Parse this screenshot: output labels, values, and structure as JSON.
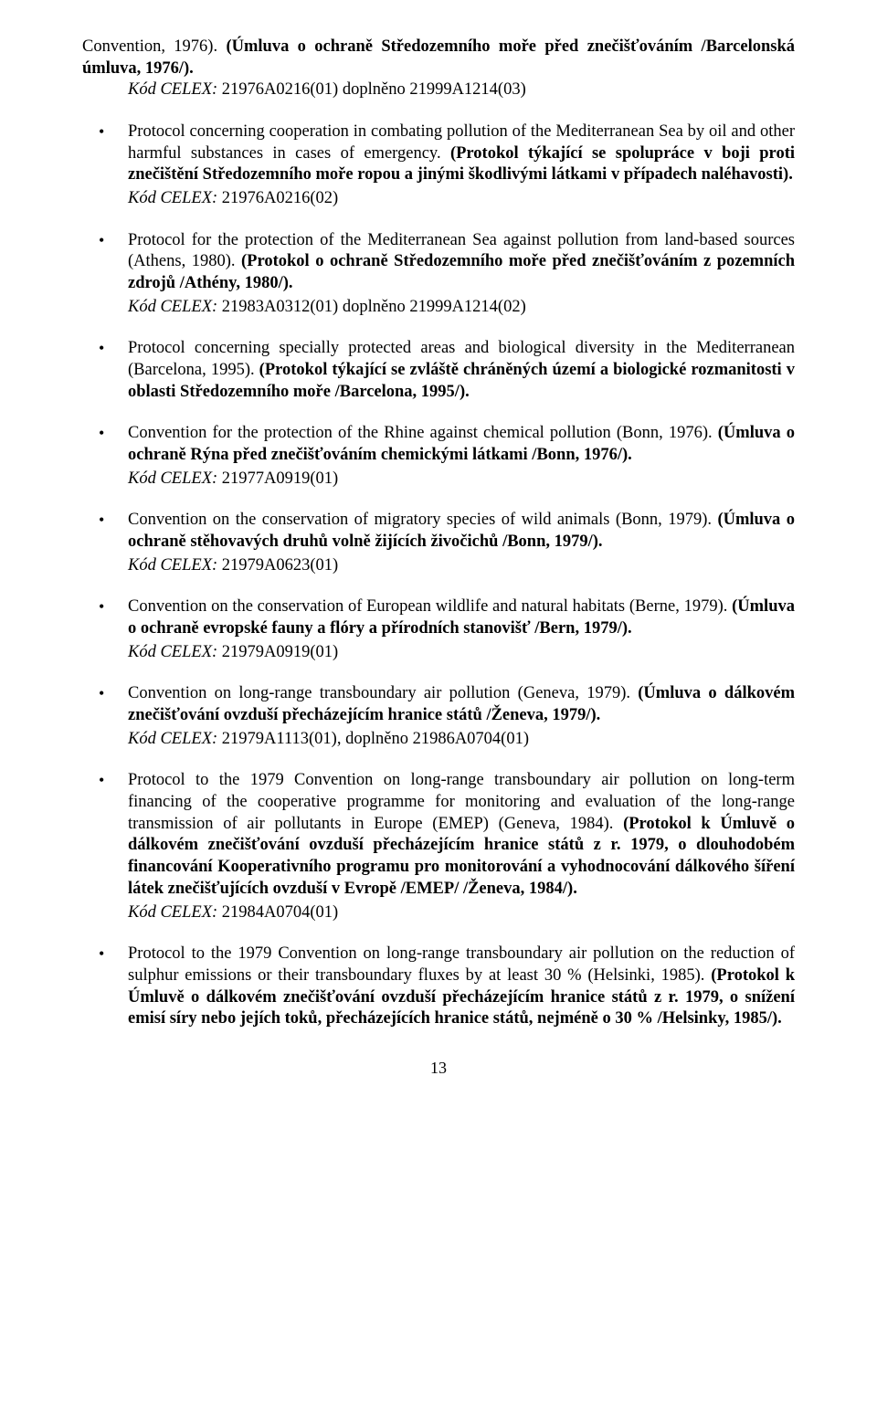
{
  "continuation": {
    "text_en": "Convention, 1976).",
    "text_cs_bold": " (Úmluva o ochraně Středozemního moře před znečišťováním /Barcelonská úmluva, 1976/).",
    "celex_label": "Kód CELEX:",
    "celex_code": " 21976A0216(01) doplněno 21999A1214(03)"
  },
  "items": [
    {
      "text_en": "Protocol concerning cooperation in combating pollution of the Mediterranean Sea by oil and other harmful substances in cases of emergency.",
      "text_cs_bold": " (Protokol týkající se spolupráce v boji proti znečištění Středozemního moře ropou a jinými škodlivými látkami v případech naléhavosti).",
      "celex_label": "Kód CELEX:",
      "celex_code": " 21976A0216(02)"
    },
    {
      "text_en": "Protocol for the protection of the Mediterranean Sea against pollution from land-based sources (Athens, 1980).",
      "text_cs_bold": " (Protokol o ochraně Středozemního moře před znečišťováním z pozemních zdrojů /Athény, 1980/).",
      "celex_label": "Kód CELEX:",
      "celex_code": " 21983A0312(01) doplněno 21999A1214(02)"
    },
    {
      "text_en": "Protocol concerning specially protected areas and biological diversity in the Mediterranean (Barcelona, 1995).",
      "text_cs_bold": " (Protokol týkající se zvláště chráněných území a biologické rozmanitosti v oblasti Středozemního moře /Barcelona, 1995/).",
      "celex_label": "",
      "celex_code": ""
    },
    {
      "text_en": "Convention for the protection of the Rhine against chemical pollution (Bonn, 1976).",
      "text_cs_bold": " (Úmluva o ochraně Rýna před znečišťováním chemickými látkami /Bonn, 1976/).",
      "celex_label": "Kód CELEX:",
      "celex_code": " 21977A0919(01)"
    },
    {
      "text_en": "Convention on the conservation of migratory species of wild animals (Bonn, 1979).",
      "text_cs_bold": " (Úmluva o ochraně stěhovavých druhů volně žijících živočichů /Bonn, 1979/).",
      "celex_label": "Kód CELEX:",
      "celex_code": " 21979A0623(01)"
    },
    {
      "text_en": "Convention on the conservation of European wildlife and natural habitats (Berne, 1979).",
      "text_cs_bold": " (Úmluva o ochraně evropské fauny a flóry a přírodních stanovišť /Bern, 1979/).",
      "celex_label": "Kód CELEX:",
      "celex_code": " 21979A0919(01)"
    },
    {
      "text_en": "Convention on long-range transboundary air pollution (Geneva, 1979).",
      "text_cs_bold": " (Úmluva o dálkovém znečišťování ovzduší přecházejícím hranice států /Ženeva, 1979/).",
      "celex_label": "Kód CELEX:",
      "celex_code": " 21979A1113(01), doplněno 21986A0704(01)"
    },
    {
      "text_en": "Protocol to the 1979 Convention on long-range transboundary air pollution on long-term financing of the cooperative programme for monitoring and evaluation of the long-range transmission of air pollutants in Europe (EMEP) (Geneva, 1984).",
      "text_cs_bold": " (Protokol k Úmluvě o dálkovém znečišťování ovzduší přecházejícím hranice států z r. 1979, o dlouhodobém financování Kooperativního programu pro monitorování a vyhodnocování dálkového šíření látek znečišťujících ovzduší v Evropě /EMEP/ /Ženeva, 1984/).",
      "celex_label": "Kód CELEX:",
      "celex_code": " 21984A0704(01)"
    },
    {
      "text_en": "Protocol to the 1979 Convention on long-range transboundary air pollution on the reduction of sulphur emissions or their transboundary fluxes by at least 30 % (Helsinki, 1985).",
      "text_cs_bold": " (Protokol k Úmluvě o dálkovém znečišťování ovzduší přecházejícím hranice států z r. 1979, o snížení emisí síry nebo jejích toků, přecházejících hranice států, nejméně o 30 % /Helsinky, 1985/).",
      "celex_label": "",
      "celex_code": ""
    }
  ],
  "pagenum": "13"
}
